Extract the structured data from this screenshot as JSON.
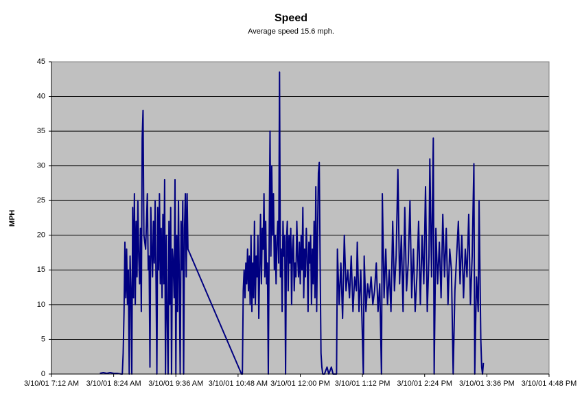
{
  "chart_data": {
    "type": "line",
    "title": "Speed",
    "subtitle": "Average speed 15.6 mph.",
    "y_label": "MPH",
    "color": "#000080",
    "plot_background": "#c0c0c0",
    "grid": true,
    "ylim": [
      0,
      45
    ],
    "yticks": [
      0,
      5,
      10,
      15,
      20,
      25,
      30,
      35,
      40,
      45
    ],
    "xlim": [
      "3/10/01 7:12 AM",
      "3/10/01 4:48 PM"
    ],
    "xticks": [
      "3/10/01 7:12 AM",
      "3/10/01 8:24 AM",
      "3/10/01 9:36 AM",
      "3/10/01 10:48 AM",
      "3/10/01 12:00 PM",
      "3/10/01 1:12 PM",
      "3/10/01 2:24 PM",
      "3/10/01 3:36 PM",
      "3/10/01 4:48 PM"
    ],
    "x": [
      "3/10/01 8:08 AM",
      "3/10/01 8:12 AM",
      "3/10/01 8:16 AM",
      "3/10/01 8:20 AM",
      "3/10/01 8:24 AM",
      "3/10/01 8:28 AM",
      "3/10/01 8:33 AM",
      "3/10/01 8:34 AM",
      "3/10/01 8:35 AM",
      "3/10/01 8:36 AM",
      "3/10/01 8:37 AM",
      "3/10/01 8:38 AM",
      "3/10/01 8:39 AM",
      "3/10/01 8:40 AM",
      "3/10/01 8:41 AM",
      "3/10/01 8:42 AM",
      "3/10/01 8:43 AM",
      "3/10/01 8:44 AM",
      "3/10/01 8:45 AM",
      "3/10/01 8:46 AM",
      "3/10/01 8:47 AM",
      "3/10/01 8:48 AM",
      "3/10/01 8:49 AM",
      "3/10/01 8:50 AM",
      "3/10/01 8:51 AM",
      "3/10/01 8:52 AM",
      "3/10/01 8:53 AM",
      "3/10/01 8:54 AM",
      "3/10/01 8:55 AM",
      "3/10/01 8:56 AM",
      "3/10/01 8:57 AM",
      "3/10/01 8:58 AM",
      "3/10/01 8:59 AM",
      "3/10/01 9:00 AM",
      "3/10/01 9:01 AM",
      "3/10/01 9:02 AM",
      "3/10/01 9:03 AM",
      "3/10/01 9:04 AM",
      "3/10/01 9:05 AM",
      "3/10/01 9:06 AM",
      "3/10/01 9:07 AM",
      "3/10/01 9:08 AM",
      "3/10/01 9:09 AM",
      "3/10/01 9:10 AM",
      "3/10/01 9:11 AM",
      "3/10/01 9:12 AM",
      "3/10/01 9:13 AM",
      "3/10/01 9:14 AM",
      "3/10/01 9:15 AM",
      "3/10/01 9:16 AM",
      "3/10/01 9:17 AM",
      "3/10/01 9:18 AM",
      "3/10/01 9:19 AM",
      "3/10/01 9:20 AM",
      "3/10/01 9:21 AM",
      "3/10/01 9:22 AM",
      "3/10/01 9:23 AM",
      "3/10/01 9:24 AM",
      "3/10/01 9:25 AM",
      "3/10/01 9:26 AM",
      "3/10/01 9:27 AM",
      "3/10/01 9:28 AM",
      "3/10/01 9:29 AM",
      "3/10/01 9:30 AM",
      "3/10/01 9:31 AM",
      "3/10/01 9:32 AM",
      "3/10/01 9:33 AM",
      "3/10/01 9:34 AM",
      "3/10/01 9:35 AM",
      "3/10/01 9:36 AM",
      "3/10/01 9:37 AM",
      "3/10/01 9:38 AM",
      "3/10/01 9:39 AM",
      "3/10/01 9:40 AM",
      "3/10/01 9:41 AM",
      "3/10/01 9:42 AM",
      "3/10/01 9:43 AM",
      "3/10/01 9:44 AM",
      "3/10/01 9:45 AM",
      "3/10/01 9:46 AM",
      "3/10/01 9:47 AM",
      "3/10/01 9:48 AM",
      "3/10/01 9:49 AM",
      "3/10/01 9:50 AM",
      "3/10/01 10:52 AM",
      "3/10/01 10:53 AM",
      "3/10/01 10:54 AM",
      "3/10/01 10:55 AM",
      "3/10/01 10:56 AM",
      "3/10/01 10:57 AM",
      "3/10/01 10:58 AM",
      "3/10/01 10:59 AM",
      "3/10/01 11:00 AM",
      "3/10/01 11:01 AM",
      "3/10/01 11:02 AM",
      "3/10/01 11:03 AM",
      "3/10/01 11:04 AM",
      "3/10/01 11:05 AM",
      "3/10/01 11:06 AM",
      "3/10/01 11:07 AM",
      "3/10/01 11:08 AM",
      "3/10/01 11:09 AM",
      "3/10/01 11:10 AM",
      "3/10/01 11:11 AM",
      "3/10/01 11:12 AM",
      "3/10/01 11:13 AM",
      "3/10/01 11:14 AM",
      "3/10/01 11:15 AM",
      "3/10/01 11:16 AM",
      "3/10/01 11:17 AM",
      "3/10/01 11:18 AM",
      "3/10/01 11:19 AM",
      "3/10/01 11:20 AM",
      "3/10/01 11:21 AM",
      "3/10/01 11:22 AM",
      "3/10/01 11:23 AM",
      "3/10/01 11:24 AM",
      "3/10/01 11:25 AM",
      "3/10/01 11:26 AM",
      "3/10/01 11:27 AM",
      "3/10/01 11:28 AM",
      "3/10/01 11:29 AM",
      "3/10/01 11:30 AM",
      "3/10/01 11:31 AM",
      "3/10/01 11:32 AM",
      "3/10/01 11:33 AM",
      "3/10/01 11:34 AM",
      "3/10/01 11:35 AM",
      "3/10/01 11:36 AM",
      "3/10/01 11:37 AM",
      "3/10/01 11:38 AM",
      "3/10/01 11:39 AM",
      "3/10/01 11:40 AM",
      "3/10/01 11:41 AM",
      "3/10/01 11:42 AM",
      "3/10/01 11:43 AM",
      "3/10/01 11:44 AM",
      "3/10/01 11:45 AM",
      "3/10/01 11:46 AM",
      "3/10/01 11:47 AM",
      "3/10/01 11:48 AM",
      "3/10/01 11:49 AM",
      "3/10/01 11:50 AM",
      "3/10/01 11:51 AM",
      "3/10/01 11:52 AM",
      "3/10/01 11:53 AM",
      "3/10/01 11:54 AM",
      "3/10/01 11:55 AM",
      "3/10/01 11:56 AM",
      "3/10/01 11:57 AM",
      "3/10/01 11:58 AM",
      "3/10/01 11:59 AM",
      "3/10/01 12:00 PM",
      "3/10/01 12:01 PM",
      "3/10/01 12:02 PM",
      "3/10/01 12:03 PM",
      "3/10/01 12:04 PM",
      "3/10/01 12:05 PM",
      "3/10/01 12:06 PM",
      "3/10/01 12:07 PM",
      "3/10/01 12:08 PM",
      "3/10/01 12:09 PM",
      "3/10/01 12:10 PM",
      "3/10/01 12:11 PM",
      "3/10/01 12:12 PM",
      "3/10/01 12:13 PM",
      "3/10/01 12:14 PM",
      "3/10/01 12:15 PM",
      "3/10/01 12:16 PM",
      "3/10/01 12:17 PM",
      "3/10/01 12:18 PM",
      "3/10/01 12:19 PM",
      "3/10/01 12:20 PM",
      "3/10/01 12:21 PM",
      "3/10/01 12:22 PM",
      "3/10/01 12:23 PM",
      "3/10/01 12:24 PM",
      "3/10/01 12:25 PM",
      "3/10/01 12:26 PM",
      "3/10/01 12:28 PM",
      "3/10/01 12:31 PM",
      "3/10/01 12:33 PM",
      "3/10/01 12:36 PM",
      "3/10/01 12:38 PM",
      "3/10/01 12:42 PM",
      "3/10/01 12:43 PM",
      "3/10/01 12:45 PM",
      "3/10/01 12:47 PM",
      "3/10/01 12:49 PM",
      "3/10/01 12:51 PM",
      "3/10/01 12:53 PM",
      "3/10/01 12:55 PM",
      "3/10/01 12:57 PM",
      "3/10/01 12:59 PM",
      "3/10/01 1:01 PM",
      "3/10/01 1:03 PM",
      "3/10/01 1:05 PM",
      "3/10/01 1:06 PM",
      "3/10/01 1:08 PM",
      "3/10/01 1:10 PM",
      "3/10/01 1:11 PM",
      "3/10/01 1:13 PM",
      "3/10/01 1:14 PM",
      "3/10/01 1:16 PM",
      "3/10/01 1:18 PM",
      "3/10/01 1:20 PM",
      "3/10/01 1:22 PM",
      "3/10/01 1:24 PM",
      "3/10/01 1:26 PM",
      "3/10/01 1:28 PM",
      "3/10/01 1:30 PM",
      "3/10/01 1:32 PM",
      "3/10/01 1:34 PM",
      "3/10/01 1:35 PM",
      "3/10/01 1:37 PM",
      "3/10/01 1:39 PM",
      "3/10/01 1:41 PM",
      "3/10/01 1:43 PM",
      "3/10/01 1:45 PM",
      "3/10/01 1:47 PM",
      "3/10/01 1:49 PM",
      "3/10/01 1:51 PM",
      "3/10/01 1:53 PM",
      "3/10/01 1:55 PM",
      "3/10/01 1:57 PM",
      "3/10/01 1:59 PM",
      "3/10/01 2:01 PM",
      "3/10/01 2:03 PM",
      "3/10/01 2:05 PM",
      "3/10/01 2:07 PM",
      "3/10/01 2:09 PM",
      "3/10/01 2:11 PM",
      "3/10/01 2:13 PM",
      "3/10/01 2:15 PM",
      "3/10/01 2:17 PM",
      "3/10/01 2:19 PM",
      "3/10/01 2:21 PM",
      "3/10/01 2:23 PM",
      "3/10/01 2:25 PM",
      "3/10/01 2:27 PM",
      "3/10/01 2:29 PM",
      "3/10/01 2:30 PM",
      "3/10/01 2:32 PM",
      "3/10/01 2:34 PM",
      "3/10/01 2:35 PM",
      "3/10/01 2:37 PM",
      "3/10/01 2:39 PM",
      "3/10/01 2:41 PM",
      "3/10/01 2:43 PM",
      "3/10/01 2:45 PM",
      "3/10/01 2:47 PM",
      "3/10/01 2:49 PM",
      "3/10/01 2:51 PM",
      "3/10/01 2:53 PM",
      "3/10/01 2:55 PM",
      "3/10/01 2:57 PM",
      "3/10/01 2:59 PM",
      "3/10/01 3:01 PM",
      "3/10/01 3:03 PM",
      "3/10/01 3:05 PM",
      "3/10/01 3:07 PM",
      "3/10/01 3:09 PM",
      "3/10/01 3:11 PM",
      "3/10/01 3:13 PM",
      "3/10/01 3:15 PM",
      "3/10/01 3:17 PM",
      "3/10/01 3:19 PM",
      "3/10/01 3:21 PM",
      "3/10/01 3:22 PM",
      "3/10/01 3:24 PM",
      "3/10/01 3:26 PM",
      "3/10/01 3:27 PM",
      "3/10/01 3:29 PM",
      "3/10/01 3:30 PM",
      "3/10/01 3:31 PM",
      "3/10/01 3:32 PM"
    ],
    "values": [
      0.1,
      0.2,
      0.1,
      0.2,
      0.1,
      0.1,
      0,
      0,
      3,
      9,
      19,
      11,
      18,
      10,
      15,
      0,
      17,
      12,
      0,
      24,
      11,
      26,
      10,
      22,
      14,
      25,
      17,
      13,
      21,
      9,
      34,
      38,
      20,
      19,
      18,
      22,
      26,
      15,
      17,
      1,
      24,
      18,
      14,
      22,
      16,
      25,
      14,
      0,
      24,
      15,
      26,
      13,
      21,
      11,
      23,
      13,
      28,
      0,
      20,
      8,
      0,
      22,
      10,
      24,
      0,
      18,
      16,
      11,
      28,
      0,
      20,
      9,
      25,
      13,
      0,
      22,
      15,
      25,
      0,
      21,
      26,
      14,
      26,
      18,
      0,
      0,
      12,
      15,
      11,
      16,
      13,
      18,
      12,
      17,
      10,
      20,
      9,
      16,
      11,
      22,
      10,
      17,
      14,
      20,
      8,
      15,
      23,
      13,
      21,
      18,
      26,
      14,
      22,
      13,
      16,
      0,
      19,
      35,
      17,
      30,
      20,
      26,
      15,
      20,
      13,
      19,
      22,
      16,
      43.5,
      14,
      18,
      9,
      22,
      17,
      20,
      0,
      19,
      22,
      12,
      20,
      16,
      21,
      10,
      18,
      20,
      12,
      16,
      14,
      22,
      17,
      14,
      19,
      13,
      20,
      15,
      24,
      11,
      18,
      14,
      21,
      17,
      9,
      19,
      16,
      20,
      10,
      18,
      13,
      22,
      11,
      27,
      9,
      20,
      29,
      30.5,
      16,
      3,
      1,
      0,
      0,
      1,
      0,
      1,
      0,
      0,
      18,
      10,
      16,
      8,
      20,
      12,
      15,
      11,
      17,
      9,
      14,
      12,
      19,
      9,
      15,
      10,
      0,
      17,
      9,
      13,
      11,
      14,
      10,
      12,
      16,
      9,
      13,
      0,
      26,
      11,
      18,
      10,
      15,
      9,
      22,
      12,
      17,
      29.5,
      13,
      20,
      9,
      24,
      12,
      16,
      25,
      11,
      18,
      9,
      14,
      22,
      10,
      20,
      13,
      27,
      9,
      17,
      31,
      14,
      34,
      0,
      21,
      13,
      19,
      11,
      23,
      14,
      21,
      10,
      18,
      15,
      0,
      12,
      17,
      22,
      13,
      20,
      11,
      18,
      14,
      23,
      10,
      17,
      30.3,
      0,
      14,
      9,
      25,
      5,
      1,
      0,
      1.6
    ]
  }
}
